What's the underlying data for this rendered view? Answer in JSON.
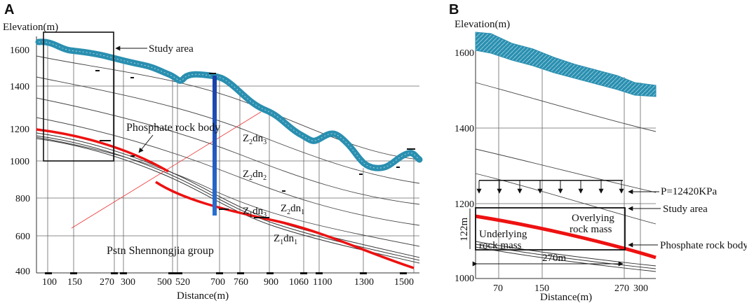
{
  "panel_a": {
    "letter": "A",
    "ylabel": "Elevation(m)",
    "xlabel": "Distance(m)",
    "y_ticks": [
      "1600",
      "1400",
      "1200",
      "1000",
      "800",
      "600",
      "400"
    ],
    "x_ticks": [
      "100",
      "150",
      "270",
      "300",
      "500",
      "520",
      "700",
      "760",
      "900",
      "1060",
      "1100",
      "1300",
      "1500"
    ],
    "study_area": "Study area",
    "phosphate": "Phosphate rock body",
    "group": "Pstn Shennongjia group",
    "strata": {
      "z2dn3": {
        "a": "Z",
        "b": "2",
        "c": "dn",
        "d": "3"
      },
      "z2dn2": {
        "a": "Z",
        "b": "2",
        "c": "dn",
        "d": "2"
      },
      "z1dn3": {
        "a": "Z",
        "b": "1",
        "c": "dn",
        "d": "3"
      },
      "z2dn1": {
        "a": "Z",
        "b": "2",
        "c": "dn",
        "d": "1"
      },
      "z1dn1": {
        "a": "Z",
        "b": "1",
        "c": "dn",
        "d": "1"
      }
    }
  },
  "panel_b": {
    "letter": "B",
    "ylabel": "Elevation(m)",
    "xlabel": "Distance(m)",
    "y_ticks": [
      "1600",
      "1400",
      "1200",
      "1000"
    ],
    "x_ticks": [
      "70",
      "150",
      "270",
      "300"
    ],
    "pressure": "P=12420KPa",
    "study_area": "Study area",
    "overlying_1": "Overlying",
    "overlying_2": "rock mass",
    "underlying_1": "Underlying",
    "underlying_2": "rock mass",
    "phosphate": "Phosphate rock body",
    "height": "122m",
    "width": "270m"
  },
  "colors": {
    "terrain": "#2a8fb0",
    "ore": "#ee1111",
    "grid": "#555555",
    "profile": "#1a3fa8"
  }
}
